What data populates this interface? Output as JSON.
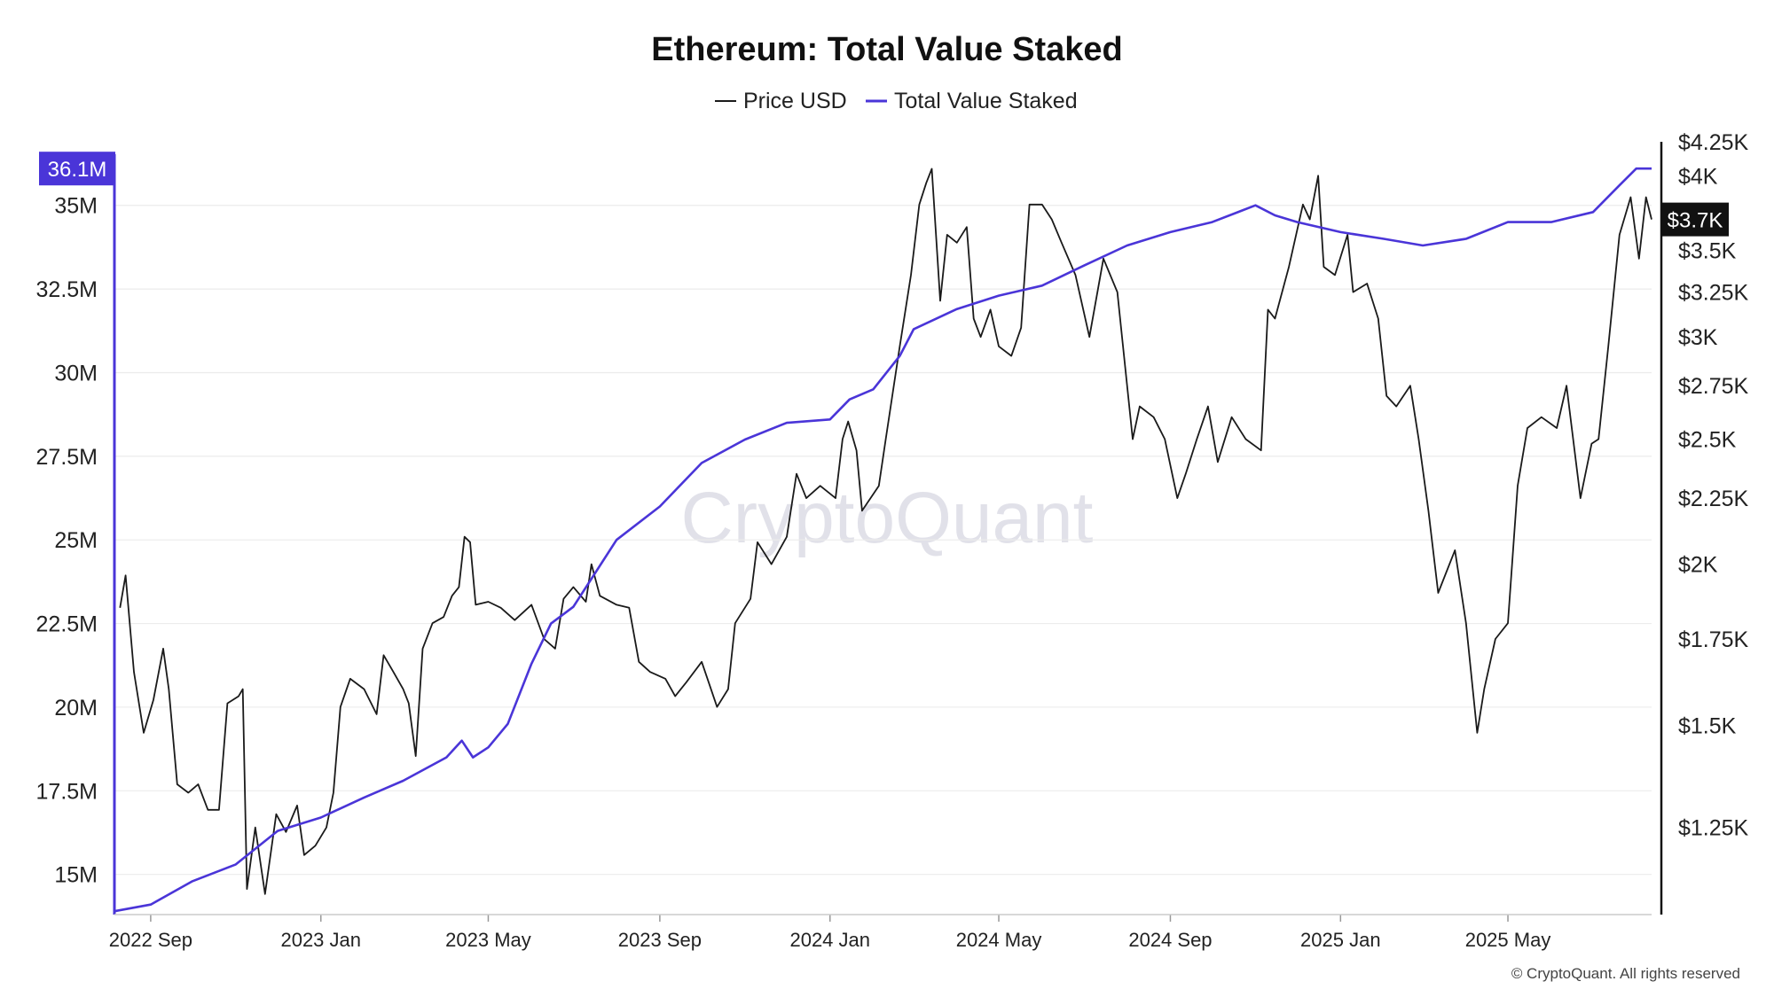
{
  "chart_data": {
    "type": "line",
    "title": "Ethereum: Total Value Staked",
    "legend": {
      "placement": "top-center"
    },
    "grid": {
      "horizontal": true,
      "vertical": false
    },
    "watermark": "CryptoQuant",
    "copyright": "© CryptoQuant. All rights reserved",
    "x_axis": {
      "type": "date",
      "range": [
        "2022-08-06",
        "2025-08-12"
      ],
      "ticks": [
        {
          "date": "2022-09-01",
          "label": "2022 Sep"
        },
        {
          "date": "2023-01-01",
          "label": "2023 Jan"
        },
        {
          "date": "2023-05-01",
          "label": "2023 May"
        },
        {
          "date": "2023-09-01",
          "label": "2023 Sep"
        },
        {
          "date": "2024-01-01",
          "label": "2024 Jan"
        },
        {
          "date": "2024-05-01",
          "label": "2024 May"
        },
        {
          "date": "2024-09-01",
          "label": "2024 Sep"
        },
        {
          "date": "2025-01-01",
          "label": "2025 Jan"
        },
        {
          "date": "2025-05-01",
          "label": "2025 May"
        }
      ]
    },
    "y_left": {
      "range": [
        13800000,
        36900000
      ],
      "ticks": [
        {
          "value": 15000000,
          "label": "15M"
        },
        {
          "value": 17500000,
          "label": "17.5M"
        },
        {
          "value": 20000000,
          "label": "20M"
        },
        {
          "value": 22500000,
          "label": "22.5M"
        },
        {
          "value": 25000000,
          "label": "25M"
        },
        {
          "value": 27500000,
          "label": "27.5M"
        },
        {
          "value": 30000000,
          "label": "30M"
        },
        {
          "value": 32500000,
          "label": "32.5M"
        },
        {
          "value": 35000000,
          "label": "35M"
        }
      ],
      "current": {
        "value": 36100000,
        "label": "36.1M"
      },
      "color": "#4a35d8"
    },
    "y_right": {
      "scale": "log",
      "range": [
        1070,
        4250
      ],
      "ticks": [
        {
          "value": 1250,
          "label": "$1.25K"
        },
        {
          "value": 1500,
          "label": "$1.5K"
        },
        {
          "value": 1750,
          "label": "$1.75K"
        },
        {
          "value": 2000,
          "label": "$2K"
        },
        {
          "value": 2250,
          "label": "$2.25K"
        },
        {
          "value": 2500,
          "label": "$2.5K"
        },
        {
          "value": 2750,
          "label": "$2.75K"
        },
        {
          "value": 3000,
          "label": "$3K"
        },
        {
          "value": 3250,
          "label": "$3.25K"
        },
        {
          "value": 3500,
          "label": "$3.5K"
        },
        {
          "value": 4000,
          "label": "$4K"
        },
        {
          "value": 4250,
          "label": "$4.25K"
        }
      ],
      "current": {
        "value": 3700,
        "label": "$3.7K"
      },
      "color": "#111111"
    },
    "series": [
      {
        "name": "Price USD",
        "axis": "right",
        "color": "#1a1a1a",
        "points": [
          [
            "2022-08-10",
            1850
          ],
          [
            "2022-08-14",
            1960
          ],
          [
            "2022-08-20",
            1650
          ],
          [
            "2022-08-27",
            1480
          ],
          [
            "2022-09-03",
            1570
          ],
          [
            "2022-09-10",
            1720
          ],
          [
            "2022-09-14",
            1600
          ],
          [
            "2022-09-20",
            1350
          ],
          [
            "2022-09-28",
            1330
          ],
          [
            "2022-10-05",
            1350
          ],
          [
            "2022-10-12",
            1290
          ],
          [
            "2022-10-20",
            1290
          ],
          [
            "2022-10-26",
            1560
          ],
          [
            "2022-11-03",
            1580
          ],
          [
            "2022-11-06",
            1600
          ],
          [
            "2022-11-09",
            1120
          ],
          [
            "2022-11-15",
            1250
          ],
          [
            "2022-11-22",
            1110
          ],
          [
            "2022-11-30",
            1280
          ],
          [
            "2022-12-07",
            1240
          ],
          [
            "2022-12-15",
            1300
          ],
          [
            "2022-12-20",
            1190
          ],
          [
            "2022-12-28",
            1210
          ],
          [
            "2023-01-05",
            1250
          ],
          [
            "2023-01-10",
            1330
          ],
          [
            "2023-01-15",
            1550
          ],
          [
            "2023-01-22",
            1630
          ],
          [
            "2023-02-01",
            1600
          ],
          [
            "2023-02-10",
            1530
          ],
          [
            "2023-02-15",
            1700
          ],
          [
            "2023-02-22",
            1650
          ],
          [
            "2023-03-01",
            1600
          ],
          [
            "2023-03-05",
            1560
          ],
          [
            "2023-03-10",
            1420
          ],
          [
            "2023-03-15",
            1720
          ],
          [
            "2023-03-22",
            1800
          ],
          [
            "2023-03-30",
            1820
          ],
          [
            "2023-04-05",
            1890
          ],
          [
            "2023-04-10",
            1920
          ],
          [
            "2023-04-14",
            2100
          ],
          [
            "2023-04-18",
            2080
          ],
          [
            "2023-04-22",
            1860
          ],
          [
            "2023-05-01",
            1870
          ],
          [
            "2023-05-10",
            1850
          ],
          [
            "2023-05-20",
            1810
          ],
          [
            "2023-06-01",
            1860
          ],
          [
            "2023-06-10",
            1750
          ],
          [
            "2023-06-18",
            1720
          ],
          [
            "2023-06-24",
            1880
          ],
          [
            "2023-07-01",
            1920
          ],
          [
            "2023-07-10",
            1870
          ],
          [
            "2023-07-14",
            2000
          ],
          [
            "2023-07-20",
            1890
          ],
          [
            "2023-08-01",
            1860
          ],
          [
            "2023-08-10",
            1850
          ],
          [
            "2023-08-17",
            1680
          ],
          [
            "2023-08-25",
            1650
          ],
          [
            "2023-09-05",
            1630
          ],
          [
            "2023-09-12",
            1580
          ],
          [
            "2023-09-20",
            1620
          ],
          [
            "2023-10-01",
            1680
          ],
          [
            "2023-10-12",
            1550
          ],
          [
            "2023-10-20",
            1600
          ],
          [
            "2023-10-25",
            1800
          ],
          [
            "2023-11-05",
            1880
          ],
          [
            "2023-11-10",
            2080
          ],
          [
            "2023-11-20",
            2000
          ],
          [
            "2023-12-01",
            2100
          ],
          [
            "2023-12-08",
            2350
          ],
          [
            "2023-12-15",
            2250
          ],
          [
            "2023-12-25",
            2300
          ],
          [
            "2024-01-05",
            2250
          ],
          [
            "2024-01-10",
            2500
          ],
          [
            "2024-01-14",
            2580
          ],
          [
            "2024-01-20",
            2450
          ],
          [
            "2024-01-24",
            2200
          ],
          [
            "2024-02-05",
            2300
          ],
          [
            "2024-02-10",
            2500
          ],
          [
            "2024-02-20",
            2950
          ],
          [
            "2024-02-28",
            3350
          ],
          [
            "2024-03-05",
            3800
          ],
          [
            "2024-03-10",
            3950
          ],
          [
            "2024-03-14",
            4050
          ],
          [
            "2024-03-20",
            3200
          ],
          [
            "2024-03-25",
            3600
          ],
          [
            "2024-04-01",
            3550
          ],
          [
            "2024-04-08",
            3650
          ],
          [
            "2024-04-13",
            3100
          ],
          [
            "2024-04-18",
            3000
          ],
          [
            "2024-04-25",
            3150
          ],
          [
            "2024-05-01",
            2950
          ],
          [
            "2024-05-10",
            2900
          ],
          [
            "2024-05-17",
            3050
          ],
          [
            "2024-05-23",
            3800
          ],
          [
            "2024-06-01",
            3800
          ],
          [
            "2024-06-08",
            3700
          ],
          [
            "2024-06-15",
            3550
          ],
          [
            "2024-06-25",
            3350
          ],
          [
            "2024-07-05",
            3000
          ],
          [
            "2024-07-15",
            3450
          ],
          [
            "2024-07-25",
            3250
          ],
          [
            "2024-08-05",
            2500
          ],
          [
            "2024-08-10",
            2650
          ],
          [
            "2024-08-20",
            2600
          ],
          [
            "2024-08-28",
            2500
          ],
          [
            "2024-09-06",
            2250
          ],
          [
            "2024-09-12",
            2350
          ],
          [
            "2024-09-20",
            2500
          ],
          [
            "2024-09-28",
            2650
          ],
          [
            "2024-10-05",
            2400
          ],
          [
            "2024-10-15",
            2600
          ],
          [
            "2024-10-25",
            2500
          ],
          [
            "2024-11-05",
            2450
          ],
          [
            "2024-11-10",
            3150
          ],
          [
            "2024-11-15",
            3100
          ],
          [
            "2024-11-25",
            3400
          ],
          [
            "2024-12-05",
            3800
          ],
          [
            "2024-12-10",
            3700
          ],
          [
            "2024-12-16",
            4000
          ],
          [
            "2024-12-20",
            3400
          ],
          [
            "2024-12-28",
            3350
          ],
          [
            "2025-01-06",
            3600
          ],
          [
            "2025-01-10",
            3250
          ],
          [
            "2025-01-20",
            3300
          ],
          [
            "2025-01-28",
            3100
          ],
          [
            "2025-02-03",
            2700
          ],
          [
            "2025-02-10",
            2650
          ],
          [
            "2025-02-20",
            2750
          ],
          [
            "2025-02-26",
            2500
          ],
          [
            "2025-03-05",
            2200
          ],
          [
            "2025-03-12",
            1900
          ],
          [
            "2025-03-24",
            2050
          ],
          [
            "2025-04-01",
            1800
          ],
          [
            "2025-04-09",
            1480
          ],
          [
            "2025-04-14",
            1600
          ],
          [
            "2025-04-22",
            1750
          ],
          [
            "2025-05-01",
            1800
          ],
          [
            "2025-05-08",
            2300
          ],
          [
            "2025-05-15",
            2550
          ],
          [
            "2025-05-25",
            2600
          ],
          [
            "2025-06-05",
            2550
          ],
          [
            "2025-06-12",
            2750
          ],
          [
            "2025-06-22",
            2250
          ],
          [
            "2025-06-30",
            2480
          ],
          [
            "2025-07-05",
            2500
          ],
          [
            "2025-07-12",
            2950
          ],
          [
            "2025-07-20",
            3600
          ],
          [
            "2025-07-28",
            3850
          ],
          [
            "2025-08-03",
            3450
          ],
          [
            "2025-08-08",
            3850
          ],
          [
            "2025-08-12",
            3700
          ]
        ]
      },
      {
        "name": "Total Value Staked",
        "axis": "left",
        "color": "#4a35d8",
        "points": [
          [
            "2022-08-06",
            13900000
          ],
          [
            "2022-09-01",
            14100000
          ],
          [
            "2022-10-01",
            14800000
          ],
          [
            "2022-11-01",
            15300000
          ],
          [
            "2022-12-01",
            16300000
          ],
          [
            "2023-01-01",
            16700000
          ],
          [
            "2023-02-01",
            17300000
          ],
          [
            "2023-03-01",
            17800000
          ],
          [
            "2023-04-01",
            18500000
          ],
          [
            "2023-04-12",
            19000000
          ],
          [
            "2023-04-20",
            18500000
          ],
          [
            "2023-05-01",
            18800000
          ],
          [
            "2023-05-15",
            19500000
          ],
          [
            "2023-06-01",
            21300000
          ],
          [
            "2023-06-15",
            22500000
          ],
          [
            "2023-07-01",
            23000000
          ],
          [
            "2023-08-01",
            25000000
          ],
          [
            "2023-09-01",
            26000000
          ],
          [
            "2023-10-01",
            27300000
          ],
          [
            "2023-11-01",
            28000000
          ],
          [
            "2023-12-01",
            28500000
          ],
          [
            "2024-01-01",
            28600000
          ],
          [
            "2024-01-15",
            29200000
          ],
          [
            "2024-02-01",
            29500000
          ],
          [
            "2024-02-20",
            30500000
          ],
          [
            "2024-03-01",
            31300000
          ],
          [
            "2024-04-01",
            31900000
          ],
          [
            "2024-05-01",
            32300000
          ],
          [
            "2024-06-01",
            32600000
          ],
          [
            "2024-07-01",
            33200000
          ],
          [
            "2024-08-01",
            33800000
          ],
          [
            "2024-09-01",
            34200000
          ],
          [
            "2024-10-01",
            34500000
          ],
          [
            "2024-11-01",
            35000000
          ],
          [
            "2024-11-15",
            34700000
          ],
          [
            "2024-12-01",
            34500000
          ],
          [
            "2025-01-01",
            34200000
          ],
          [
            "2025-02-01",
            34000000
          ],
          [
            "2025-03-01",
            33800000
          ],
          [
            "2025-04-01",
            34000000
          ],
          [
            "2025-05-01",
            34500000
          ],
          [
            "2025-06-01",
            34500000
          ],
          [
            "2025-07-01",
            34800000
          ],
          [
            "2025-07-20",
            35600000
          ],
          [
            "2025-08-01",
            36100000
          ],
          [
            "2025-08-12",
            36100000
          ]
        ]
      }
    ]
  }
}
